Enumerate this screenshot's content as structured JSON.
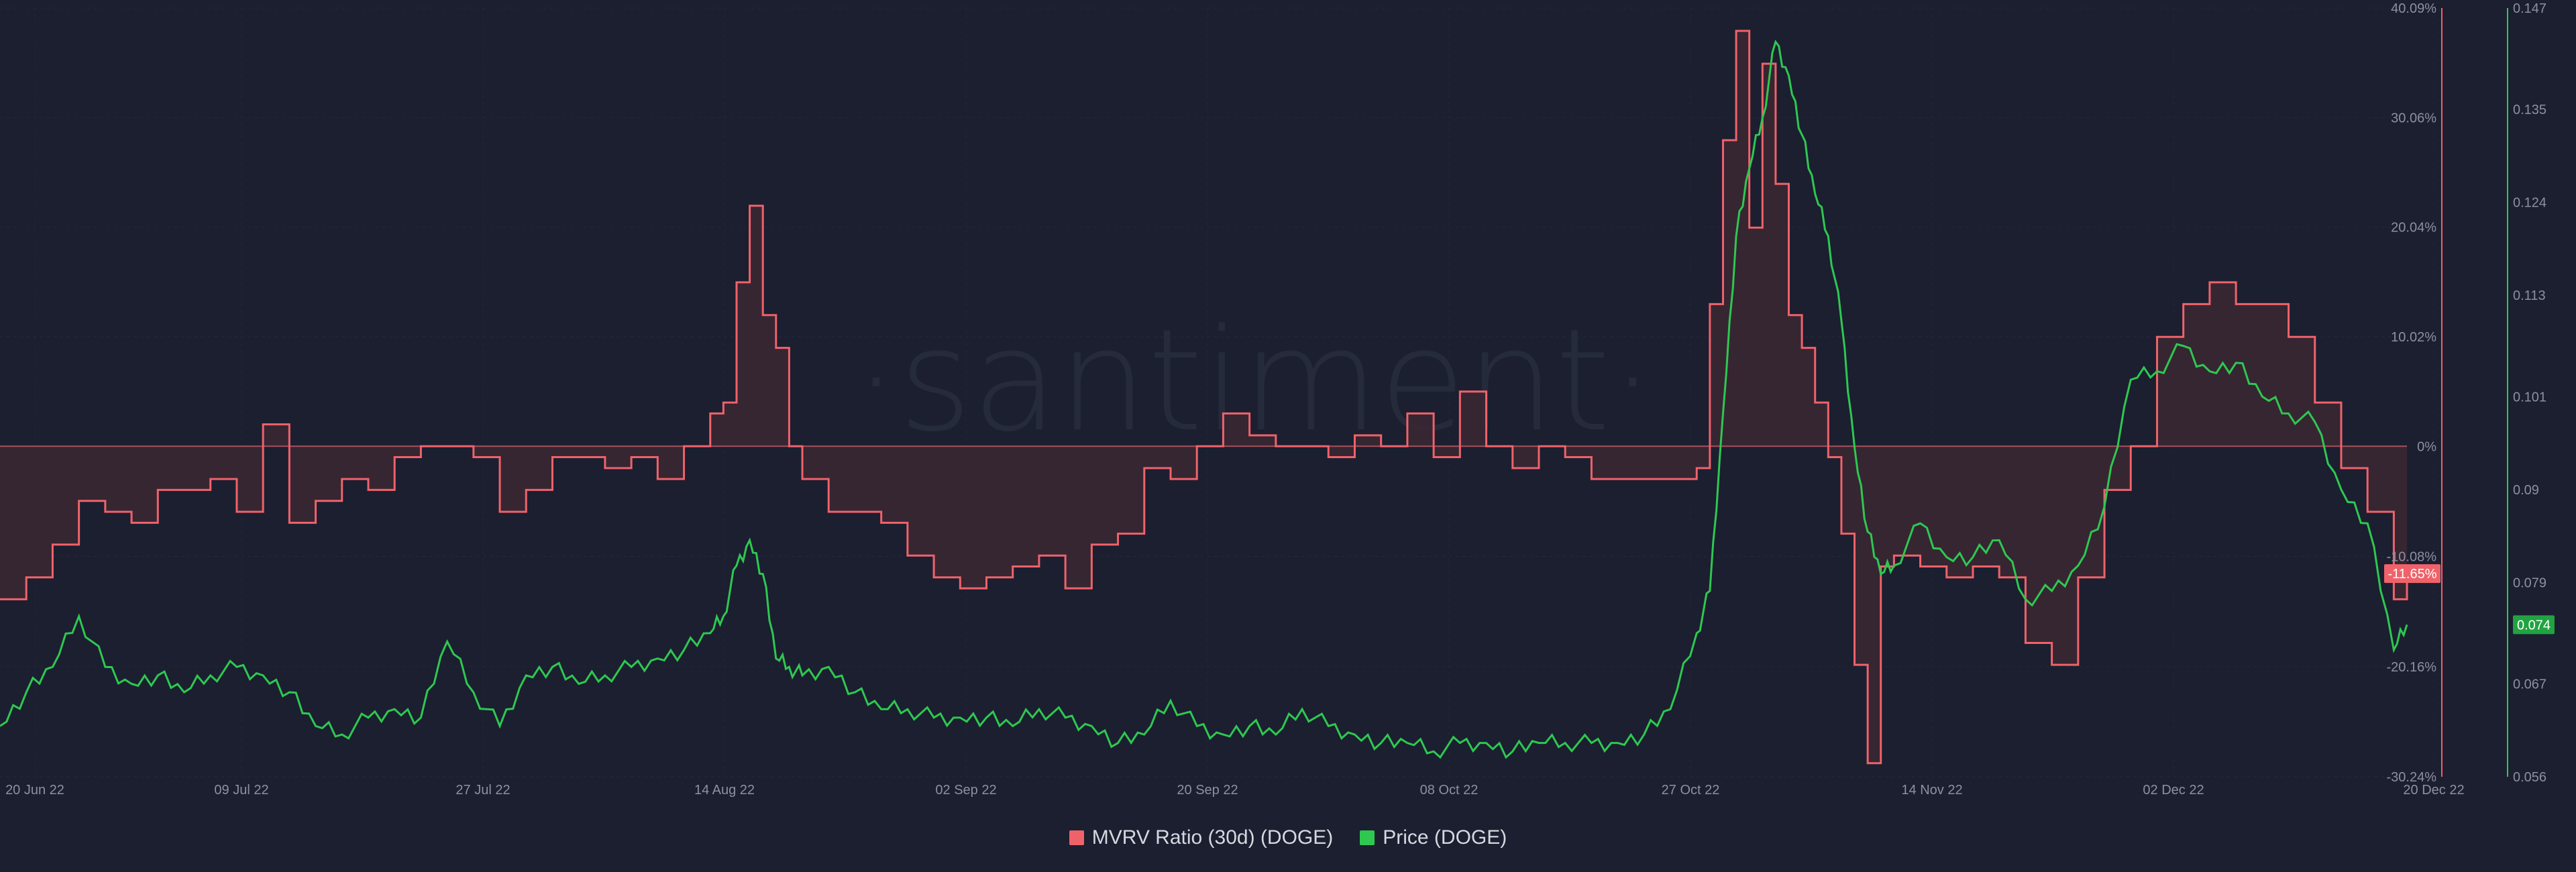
{
  "watermark": "·santiment·",
  "chart_data": {
    "type": "line",
    "x_ticks": [
      "20 Jun 22",
      "09 Jul 22",
      "27 Jul 22",
      "14 Aug 22",
      "02 Sep 22",
      "20 Sep 22",
      "08 Oct 22",
      "27 Oct 22",
      "14 Nov 22",
      "02 Dec 22",
      "20 Dec 22"
    ],
    "xlim": [
      "2022-06-20",
      "2022-12-20"
    ],
    "y_left": {
      "label": "MVRV Ratio (30d) (DOGE)",
      "ticks": [
        "40.09%",
        "30.06%",
        "20.04%",
        "10.02%",
        "0%",
        "-10.08%",
        "-20.16%",
        "-30.24%"
      ],
      "ylim": [
        -30.24,
        40.09
      ],
      "unit": "%"
    },
    "y_right": {
      "label": "Price (DOGE)",
      "ticks": [
        "0.147",
        "0.135",
        "0.124",
        "0.113",
        "0.101",
        "0.09",
        "0.079",
        "0.067",
        "0.056"
      ],
      "ylim": [
        0.056,
        0.147
      ]
    },
    "series": [
      {
        "name": "MVRV Ratio (30d) (DOGE)",
        "color": "#f0626a",
        "axis": "left",
        "current_label": "-11.65%",
        "x": [
          "2022-06-20",
          "2022-06-22",
          "2022-06-24",
          "2022-06-26",
          "2022-06-28",
          "2022-06-30",
          "2022-07-02",
          "2022-07-04",
          "2022-07-06",
          "2022-07-08",
          "2022-07-10",
          "2022-07-12",
          "2022-07-14",
          "2022-07-16",
          "2022-07-18",
          "2022-07-20",
          "2022-07-22",
          "2022-07-24",
          "2022-07-26",
          "2022-07-28",
          "2022-07-30",
          "2022-08-01",
          "2022-08-03",
          "2022-08-05",
          "2022-08-07",
          "2022-08-09",
          "2022-08-11",
          "2022-08-13",
          "2022-08-14",
          "2022-08-15",
          "2022-08-16",
          "2022-08-17",
          "2022-08-18",
          "2022-08-19",
          "2022-08-20",
          "2022-08-22",
          "2022-08-24",
          "2022-08-26",
          "2022-08-28",
          "2022-08-30",
          "2022-09-01",
          "2022-09-03",
          "2022-09-05",
          "2022-09-07",
          "2022-09-09",
          "2022-09-11",
          "2022-09-13",
          "2022-09-15",
          "2022-09-17",
          "2022-09-19",
          "2022-09-21",
          "2022-09-23",
          "2022-09-25",
          "2022-09-27",
          "2022-09-29",
          "2022-10-01",
          "2022-10-03",
          "2022-10-05",
          "2022-10-07",
          "2022-10-09",
          "2022-10-11",
          "2022-10-13",
          "2022-10-15",
          "2022-10-17",
          "2022-10-19",
          "2022-10-21",
          "2022-10-23",
          "2022-10-25",
          "2022-10-27",
          "2022-10-28",
          "2022-10-29",
          "2022-10-30",
          "2022-10-31",
          "2022-11-01",
          "2022-11-02",
          "2022-11-03",
          "2022-11-04",
          "2022-11-05",
          "2022-11-06",
          "2022-11-07",
          "2022-11-08",
          "2022-11-09",
          "2022-11-10",
          "2022-11-11",
          "2022-11-13",
          "2022-11-15",
          "2022-11-17",
          "2022-11-19",
          "2022-11-21",
          "2022-11-23",
          "2022-11-25",
          "2022-11-27",
          "2022-11-29",
          "2022-12-01",
          "2022-12-03",
          "2022-12-05",
          "2022-12-07",
          "2022-12-09",
          "2022-12-11",
          "2022-12-13",
          "2022-12-15",
          "2022-12-17",
          "2022-12-19",
          "2022-12-20"
        ],
        "values": [
          -14,
          -12,
          -9,
          -5,
          -6,
          -7,
          -4,
          -4,
          -3,
          -6,
          2,
          -7,
          -5,
          -3,
          -4,
          -1,
          0,
          0,
          -1,
          -6,
          -4,
          -1,
          -1,
          -2,
          -1,
          -3,
          0,
          3,
          4,
          15,
          22,
          12,
          9,
          0,
          -3,
          -6,
          -6,
          -7,
          -10,
          -12,
          -13,
          -12,
          -11,
          -10,
          -13,
          -9,
          -8,
          -2,
          -3,
          0,
          3,
          1,
          0,
          0,
          -1,
          1,
          0,
          3,
          -1,
          5,
          0,
          -2,
          0,
          -1,
          -3,
          -3,
          -3,
          -3,
          -2,
          13,
          28,
          38,
          20,
          35,
          24,
          12,
          9,
          4,
          -1,
          -8,
          -20,
          -29,
          -11,
          -10,
          -11,
          -12,
          -11,
          -12,
          -18,
          -20,
          -12,
          -4,
          0,
          10,
          13,
          15,
          13,
          13,
          10,
          4,
          -2,
          -6,
          -14,
          -12
        ],
        "fill": "#3a2733"
      },
      {
        "name": "Price (DOGE)",
        "color": "#2ec850",
        "axis": "right",
        "current_label": "0.074",
        "x": [
          "2022-06-20",
          "2022-06-22",
          "2022-06-24",
          "2022-06-26",
          "2022-06-28",
          "2022-06-30",
          "2022-07-02",
          "2022-07-04",
          "2022-07-06",
          "2022-07-08",
          "2022-07-10",
          "2022-07-12",
          "2022-07-14",
          "2022-07-16",
          "2022-07-18",
          "2022-07-20",
          "2022-07-22",
          "2022-07-24",
          "2022-07-26",
          "2022-07-28",
          "2022-07-30",
          "2022-08-01",
          "2022-08-03",
          "2022-08-05",
          "2022-08-07",
          "2022-08-09",
          "2022-08-11",
          "2022-08-13",
          "2022-08-14",
          "2022-08-15",
          "2022-08-16",
          "2022-08-17",
          "2022-08-18",
          "2022-08-19",
          "2022-08-20",
          "2022-08-22",
          "2022-08-24",
          "2022-08-26",
          "2022-08-28",
          "2022-08-30",
          "2022-09-01",
          "2022-09-03",
          "2022-09-05",
          "2022-09-07",
          "2022-09-09",
          "2022-09-11",
          "2022-09-13",
          "2022-09-15",
          "2022-09-17",
          "2022-09-19",
          "2022-09-21",
          "2022-09-23",
          "2022-09-25",
          "2022-09-27",
          "2022-09-29",
          "2022-10-01",
          "2022-10-03",
          "2022-10-05",
          "2022-10-07",
          "2022-10-09",
          "2022-10-11",
          "2022-10-13",
          "2022-10-15",
          "2022-10-17",
          "2022-10-19",
          "2022-10-21",
          "2022-10-23",
          "2022-10-25",
          "2022-10-27",
          "2022-10-28",
          "2022-10-29",
          "2022-10-30",
          "2022-10-31",
          "2022-11-01",
          "2022-11-02",
          "2022-11-03",
          "2022-11-04",
          "2022-11-05",
          "2022-11-06",
          "2022-11-07",
          "2022-11-08",
          "2022-11-09",
          "2022-11-10",
          "2022-11-11",
          "2022-11-13",
          "2022-11-15",
          "2022-11-17",
          "2022-11-19",
          "2022-11-21",
          "2022-11-23",
          "2022-11-25",
          "2022-11-27",
          "2022-11-29",
          "2022-12-01",
          "2022-12-03",
          "2022-12-05",
          "2022-12-07",
          "2022-12-09",
          "2022-12-11",
          "2022-12-13",
          "2022-12-15",
          "2022-12-17",
          "2022-12-19",
          "2022-12-20"
        ],
        "values": [
          0.062,
          0.066,
          0.069,
          0.075,
          0.069,
          0.067,
          0.068,
          0.066,
          0.068,
          0.069,
          0.068,
          0.066,
          0.062,
          0.061,
          0.063,
          0.064,
          0.063,
          0.072,
          0.066,
          0.062,
          0.068,
          0.069,
          0.067,
          0.068,
          0.069,
          0.07,
          0.071,
          0.073,
          0.075,
          0.081,
          0.084,
          0.08,
          0.07,
          0.069,
          0.068,
          0.069,
          0.066,
          0.064,
          0.064,
          0.063,
          0.063,
          0.063,
          0.062,
          0.064,
          0.063,
          0.062,
          0.06,
          0.061,
          0.065,
          0.062,
          0.061,
          0.062,
          0.061,
          0.064,
          0.062,
          0.061,
          0.06,
          0.06,
          0.059,
          0.06,
          0.06,
          0.059,
          0.06,
          0.06,
          0.06,
          0.06,
          0.061,
          0.064,
          0.073,
          0.078,
          0.099,
          0.12,
          0.128,
          0.134,
          0.143,
          0.139,
          0.132,
          0.125,
          0.12,
          0.11,
          0.095,
          0.085,
          0.08,
          0.081,
          0.086,
          0.082,
          0.082,
          0.084,
          0.077,
          0.078,
          0.081,
          0.088,
          0.103,
          0.104,
          0.107,
          0.104,
          0.105,
          0.101,
          0.099,
          0.098,
          0.09,
          0.086,
          0.071,
          0.074
        ]
      }
    ],
    "grid": true,
    "legend_position": "bottom-center"
  }
}
